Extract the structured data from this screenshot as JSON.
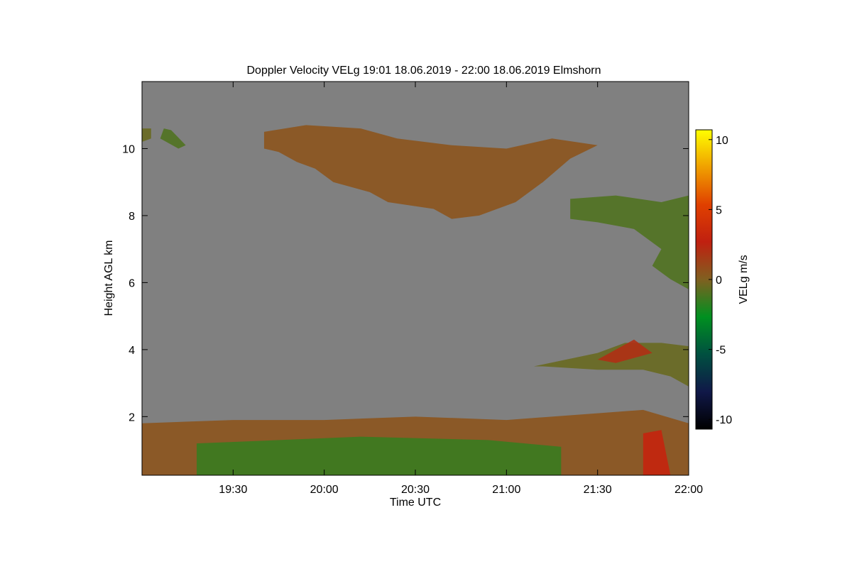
{
  "chart_data": {
    "type": "time-height",
    "title": "Doppler Velocity VELg   19:01 18.06.2019 - 22:00 18.06.2019 Elmshorn",
    "x_label": "Time UTC",
    "y_label": "Height AGL km",
    "colorbar_label": "VELg m/s",
    "xlim": [
      19.0,
      22.0
    ],
    "xticks": [
      {
        "value": 19.5,
        "label": "19:30"
      },
      {
        "value": 20.0,
        "label": "20:00"
      },
      {
        "value": 20.5,
        "label": "20:30"
      },
      {
        "value": 21.0,
        "label": "21:00"
      },
      {
        "value": 21.5,
        "label": "21:30"
      },
      {
        "value": 22.0,
        "label": "22:00"
      }
    ],
    "ylim": [
      0.25,
      12.0
    ],
    "yticks": [
      2,
      4,
      6,
      8,
      10
    ],
    "clim": [
      -10.7,
      10.7
    ],
    "cticks": [
      -10,
      -5,
      0,
      5,
      10
    ],
    "colormap": [
      "#000000",
      "#101848",
      "#005040",
      "#009020",
      "#806020",
      "#c02010",
      "#e04000",
      "#f0a000",
      "#ffff00"
    ],
    "background": "#808080",
    "regions": [
      {
        "value": 0.5,
        "x": [
          19.67,
          19.9,
          20.2,
          20.4,
          20.7,
          21.0,
          21.25,
          21.5,
          21.35,
          21.2,
          21.05,
          20.85,
          20.7,
          20.6,
          20.35,
          20.25,
          20.05,
          19.95,
          19.85,
          19.75,
          19.67
        ],
        "y": [
          10.5,
          10.7,
          10.6,
          10.3,
          10.1,
          10.0,
          10.3,
          10.1,
          9.7,
          9.0,
          8.4,
          8.0,
          7.9,
          8.2,
          8.4,
          8.7,
          9.0,
          9.4,
          9.6,
          9.9,
          10.0
        ]
      },
      {
        "value": -0.5,
        "x": [
          19.0,
          19.05,
          19.05,
          19.0
        ],
        "y": [
          10.6,
          10.6,
          10.3,
          10.2
        ]
      },
      {
        "value": -1,
        "x": [
          19.12,
          19.16,
          19.24,
          19.2,
          19.1
        ],
        "y": [
          10.6,
          10.55,
          10.1,
          10.0,
          10.3
        ]
      },
      {
        "value": -1,
        "x": [
          21.35,
          21.6,
          21.85,
          22.0,
          22.0,
          21.9,
          21.8,
          21.85,
          21.7,
          21.5,
          21.35
        ],
        "y": [
          8.5,
          8.6,
          8.4,
          8.6,
          5.8,
          6.1,
          6.5,
          7.0,
          7.6,
          7.8,
          7.9
        ]
      },
      {
        "value": -0.5,
        "x": [
          21.15,
          21.5,
          21.65,
          21.85,
          22.0,
          22.0,
          21.9,
          21.75,
          21.5,
          21.2
        ],
        "y": [
          3.5,
          3.9,
          4.2,
          4.2,
          4.1,
          2.9,
          3.2,
          3.4,
          3.4,
          3.5
        ]
      },
      {
        "value": 2,
        "x": [
          21.5,
          21.7,
          21.8,
          21.6
        ],
        "y": [
          3.7,
          4.3,
          3.9,
          3.6
        ]
      },
      {
        "value": 0.5,
        "x": [
          19.0,
          19.0,
          19.5,
          20.0,
          20.5,
          21.0,
          21.5,
          21.75,
          22.0,
          22.0
        ],
        "y": [
          0.25,
          1.8,
          1.9,
          1.9,
          2.0,
          1.9,
          2.1,
          2.2,
          1.8,
          0.25
        ]
      },
      {
        "value": -1.5,
        "x": [
          19.3,
          19.3,
          20.2,
          20.9,
          21.3,
          21.3
        ],
        "y": [
          0.25,
          1.2,
          1.4,
          1.3,
          1.1,
          0.25
        ]
      },
      {
        "value": 3,
        "x": [
          21.75,
          21.75,
          21.85,
          21.9
        ],
        "y": [
          0.25,
          1.5,
          1.6,
          0.25
        ]
      }
    ]
  }
}
